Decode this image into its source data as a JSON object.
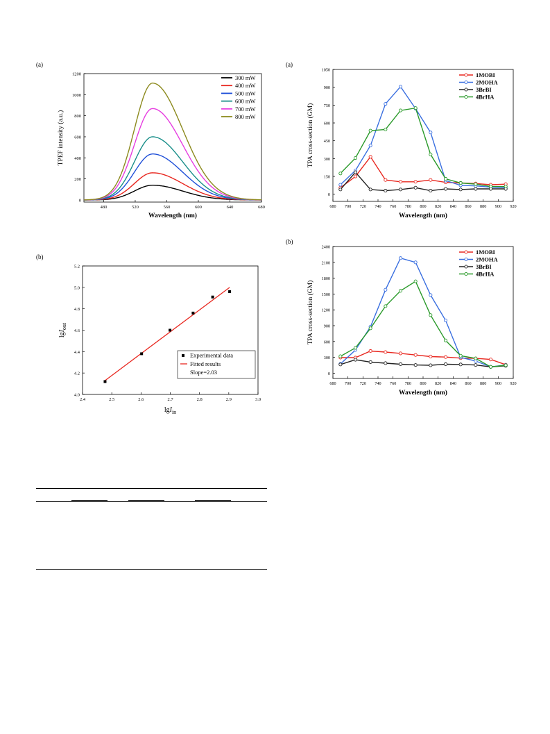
{
  "panels": {
    "tpef": {
      "tag": "(a)",
      "chart_data": {
        "type": "line",
        "xlabel": "Wavelength (nm)",
        "ylabel": "TPEF intensity (a.u.)",
        "xlim": [
          455,
          680
        ],
        "ylim": [
          -20,
          1200
        ],
        "xticks": [
          480,
          520,
          560,
          600,
          640,
          680
        ],
        "yticks": [
          0,
          200,
          400,
          600,
          800,
          1000,
          1200
        ],
        "peak_x": 542,
        "legend_position": "top-right",
        "series": [
          {
            "name": "300 mW",
            "color": "#000000",
            "peak": 140
          },
          {
            "name": "400 mW",
            "color": "#e8271f",
            "peak": 258
          },
          {
            "name": "500 mW",
            "color": "#1f4fd8",
            "peak": 437
          },
          {
            "name": "600 mW",
            "color": "#1a8f8a",
            "peak": 600
          },
          {
            "name": "700 mW",
            "color": "#e63de0",
            "peak": 868
          },
          {
            "name": "800 mW",
            "color": "#8c8a1e",
            "peak": 1110
          }
        ]
      }
    },
    "fit": {
      "tag": "(b)",
      "chart_data": {
        "type": "scatter",
        "xlabel_main": "lg",
        "xlabel_italic": "I",
        "xlabel_sub": "in",
        "ylabel_main": "lg",
        "ylabel_italic": "I",
        "ylabel_sub": "out",
        "xlim": [
          2.4,
          3.0
        ],
        "ylim": [
          4.0,
          5.2
        ],
        "xticks": [
          2.4,
          2.5,
          2.6,
          2.7,
          2.8,
          2.9,
          3.0
        ],
        "yticks": [
          4.0,
          4.2,
          4.4,
          4.6,
          4.8,
          5.0,
          5.2
        ],
        "x": [
          2.477,
          2.602,
          2.699,
          2.778,
          2.845,
          2.903
        ],
        "y": [
          4.12,
          4.38,
          4.6,
          4.76,
          4.91,
          4.96
        ],
        "fit_line": {
          "x": [
            2.477,
            2.903
          ],
          "y": [
            4.13,
            5.0
          ]
        },
        "legend_position": "bottom-right",
        "legend": {
          "experimental": "Experimental data",
          "fitted": "Fitted results",
          "slope": "Slope=2.03"
        }
      }
    },
    "tpa_a": {
      "tag": "(a)",
      "chart_data": {
        "type": "line",
        "xlabel": "Wavelength (nm)",
        "ylabel": "TPA cross-section (GM)",
        "xlim": [
          680,
          920
        ],
        "ylim": [
          -60,
          1050
        ],
        "xticks": [
          680,
          700,
          720,
          740,
          760,
          780,
          800,
          820,
          840,
          860,
          880,
          900,
          920
        ],
        "yticks": [
          0,
          150,
          300,
          450,
          600,
          750,
          900,
          1050
        ],
        "x": [
          690,
          710,
          730,
          750,
          770,
          790,
          810,
          830,
          850,
          870,
          890,
          910
        ],
        "legend_position": "top-right",
        "series": [
          {
            "name": "1MOBI",
            "color": "#e8271f",
            "values": [
              55,
              150,
              315,
              120,
              105,
              105,
              120,
              100,
              95,
              90,
              80,
              85
            ]
          },
          {
            "name": "2MOHA",
            "color": "#3a6fe0",
            "values": [
              80,
              200,
              410,
              760,
              905,
              720,
              520,
              115,
              75,
              70,
              60,
              55
            ]
          },
          {
            "name": "3BrBI",
            "color": "#222222",
            "values": [
              40,
              185,
              40,
              30,
              40,
              55,
              30,
              45,
              40,
              45,
              45,
              45
            ]
          },
          {
            "name": "4BrHA",
            "color": "#2a9a2a",
            "values": [
              175,
              305,
              535,
              545,
              705,
              725,
              335,
              130,
              95,
              85,
              65,
              65
            ]
          }
        ]
      }
    },
    "tpa_b": {
      "tag": "(b)",
      "chart_data": {
        "type": "line",
        "xlabel": "Wavelength (nm)",
        "ylabel": "TPA cross-section (GM)",
        "xlim": [
          680,
          920
        ],
        "ylim": [
          -100,
          2400
        ],
        "xticks": [
          680,
          700,
          720,
          740,
          760,
          780,
          800,
          820,
          840,
          860,
          880,
          900,
          920
        ],
        "yticks": [
          0,
          300,
          600,
          900,
          1200,
          1500,
          1800,
          2100,
          2400
        ],
        "x": [
          690,
          710,
          730,
          750,
          770,
          790,
          810,
          830,
          850,
          870,
          890,
          910
        ],
        "legend_position": "top-right",
        "series": [
          {
            "name": "1MOBI",
            "color": "#e8271f",
            "values": [
              295,
              295,
              420,
              400,
              375,
              345,
              315,
              305,
              285,
              280,
              260,
              160
            ]
          },
          {
            "name": "2MOHA",
            "color": "#3a6fe0",
            "values": [
              175,
              440,
              880,
              1580,
              2180,
              2100,
              1480,
              1000,
              300,
              230,
              120,
              155
            ]
          },
          {
            "name": "3BrBI",
            "color": "#222222",
            "values": [
              165,
              255,
              210,
              190,
              170,
              155,
              150,
              170,
              165,
              155,
              120,
              140
            ]
          },
          {
            "name": "4BrHA",
            "color": "#2a9a2a",
            "values": [
              320,
              480,
              850,
              1270,
              1560,
              1740,
              1100,
              620,
              330,
              280,
              120,
              150
            ]
          }
        ]
      }
    }
  }
}
